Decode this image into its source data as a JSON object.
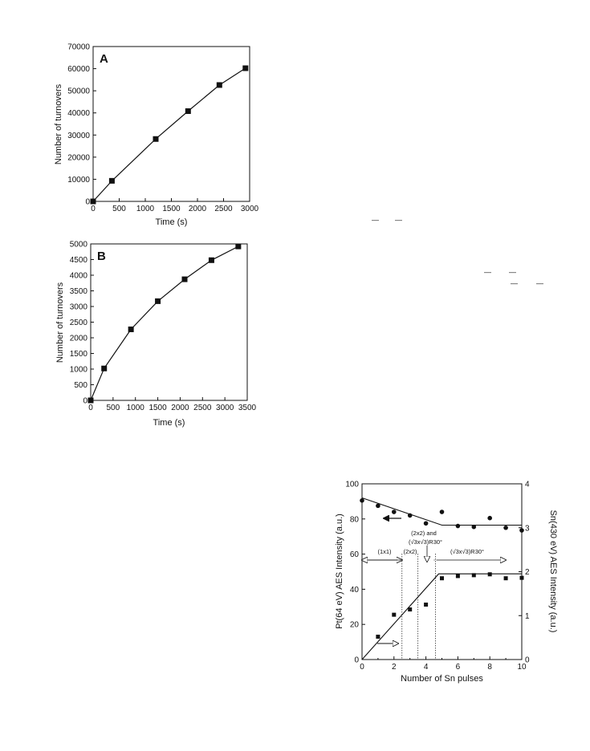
{
  "chart_data": [
    {
      "type": "line",
      "panel_label": "A",
      "xlabel": "Time (s)",
      "ylabel": "Number of turnovers",
      "xlim": [
        0,
        3000
      ],
      "ylim": [
        0,
        70000
      ],
      "x_ticks": [
        "0",
        "500",
        "1000",
        "1500",
        "2000",
        "2500",
        "3000"
      ],
      "y_ticks": [
        "0",
        "10000",
        "20000",
        "30000",
        "40000",
        "50000",
        "60000",
        "70000"
      ],
      "marker": "square",
      "series": [
        {
          "x": [
            0,
            360,
            1200,
            1820,
            2420,
            2920
          ],
          "y": [
            0,
            9300,
            28200,
            40800,
            52600,
            60200
          ]
        }
      ]
    },
    {
      "type": "line",
      "panel_label": "B",
      "xlabel": "Time (s)",
      "ylabel": "Number of turnovers",
      "xlim": [
        0,
        3500
      ],
      "ylim": [
        0,
        5000
      ],
      "x_ticks": [
        "0",
        "500",
        "1000",
        "1500",
        "2000",
        "2500",
        "3000",
        "3500"
      ],
      "y_ticks": [
        "0",
        "500",
        "1000",
        "1500",
        "2000",
        "2500",
        "3000",
        "3500",
        "4000",
        "4500",
        "5000"
      ],
      "marker": "square",
      "series": [
        {
          "x": [
            0,
            300,
            900,
            1500,
            2100,
            2700,
            3300
          ],
          "y": [
            0,
            1020,
            2270,
            3170,
            3870,
            4480,
            4920
          ]
        }
      ]
    },
    {
      "type": "scatter",
      "xlabel": "Number of Sn pulses",
      "ylabel": "Pt(64 eV) AES Intensity (a.u.)",
      "ylabel_right": "Sn(430 eV) AES Intensity (a.u.)",
      "xlim": [
        0,
        10
      ],
      "ylim": [
        0,
        100
      ],
      "ylim_right": [
        0,
        4
      ],
      "x_ticks": [
        "0",
        "2",
        "4",
        "6",
        "8",
        "10"
      ],
      "y_ticks": [
        "0",
        "20",
        "40",
        "60",
        "80",
        "100"
      ],
      "y_ticks_right": [
        "0",
        "1",
        "2",
        "3",
        "4"
      ],
      "series": [
        {
          "marker": "circle",
          "axis": "left",
          "x": [
            0,
            1,
            2,
            3,
            4,
            5,
            6,
            7,
            8,
            9,
            10
          ],
          "y": [
            90.5,
            87.5,
            84,
            82,
            77.5,
            84,
            76,
            75.5,
            80.5,
            75,
            73.5
          ]
        },
        {
          "marker": "square",
          "axis": "right",
          "x": [
            1,
            2,
            3,
            4,
            5,
            6,
            7,
            8,
            9,
            10
          ],
          "y": [
            0.52,
            1.02,
            1.14,
            1.25,
            1.85,
            1.9,
            1.92,
            1.94,
            1.85,
            1.86
          ]
        }
      ],
      "fit_lines": [
        {
          "axis": "left",
          "x": [
            0,
            5,
            10
          ],
          "y": [
            92,
            76.5,
            76.5
          ]
        },
        {
          "axis": "right",
          "x": [
            0,
            4.8,
            10
          ],
          "y": [
            0,
            1.95,
            1.95
          ]
        }
      ],
      "vertical_lines_x": [
        2.5,
        3.5,
        4.6
      ],
      "annotations": {
        "region_1x1": "(1x1)",
        "region_2x2": "(2x2)",
        "region_mixed": "(2x2) and",
        "region_mixed_2": "(√3x√3)R30°",
        "region_r3": "(√3x√3)R30°"
      }
    }
  ],
  "overlines": [
    "—",
    "—",
    "—",
    "—",
    "—",
    "—"
  ]
}
